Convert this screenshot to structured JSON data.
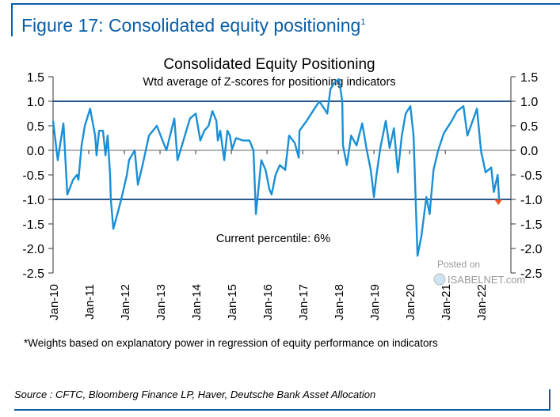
{
  "figure": {
    "title": "Figure 17: Consolidated equity positioning",
    "title_superscript": "1",
    "footnote": "*Weights based on explanatory power in regression of equity performance on indicators",
    "source": "Source : CFTC, Bloomberg Finance LP, Haver, Deutsche Bank Asset Allocation",
    "watermark_top": "Posted on",
    "watermark_bottom": "ISABELNET.com",
    "accent_color": "#0b5ea8"
  },
  "chart_data": {
    "type": "line",
    "title": "Consolidated Equity Positioning",
    "subtitle": "Wtd average of Z-scores for positioning indicators",
    "annotation": "Current percentile: 6%",
    "xlabel": "",
    "ylabel": "",
    "xlim": [
      2010,
      2022.84
    ],
    "ylim": [
      -2.5,
      1.5
    ],
    "y_ticks": [
      "1.5",
      "1.0",
      "0.5",
      "0.0",
      "-0.5",
      "-1.0",
      "-1.5",
      "-2.0",
      "-2.5"
    ],
    "y_tick_values": [
      1.5,
      1.0,
      0.5,
      0.0,
      -0.5,
      -1.0,
      -1.5,
      -2.0,
      -2.5
    ],
    "x_ticks": [
      "Jan-10",
      "Jan-11",
      "Jan-12",
      "Jan-13",
      "Jan-14",
      "Jan-15",
      "Jan-16",
      "Jan-17",
      "Jan-18",
      "Jan-19",
      "Jan-20",
      "Jan-21",
      "Jan-22"
    ],
    "x_tick_values": [
      2010,
      2011,
      2012,
      2013,
      2014,
      2015,
      2016,
      2017,
      2018,
      2019,
      2020,
      2021,
      2022
    ],
    "reference_lines": [
      1.0,
      0.0,
      -1.0
    ],
    "series_color": "#1a8fd6",
    "reference_color": "#0d3f7a",
    "marker_color": "#e8522a",
    "current_point": {
      "x": 2022.49,
      "y": -1.05
    },
    "series": [
      {
        "name": "Consolidated Equity Positioning",
        "x": [
          2010.0,
          2010.13,
          2010.29,
          2010.4,
          2010.56,
          2010.67,
          2010.71,
          2010.8,
          2010.89,
          2011.04,
          2011.18,
          2011.22,
          2011.29,
          2011.4,
          2011.47,
          2011.53,
          2011.6,
          2011.62,
          2011.69,
          2011.84,
          2011.91,
          2012.07,
          2012.13,
          2012.29,
          2012.38,
          2012.51,
          2012.69,
          2012.91,
          2013.18,
          2013.4,
          2013.49,
          2013.84,
          2014.0,
          2014.13,
          2014.24,
          2014.36,
          2014.47,
          2014.58,
          2014.62,
          2014.69,
          2014.8,
          2014.89,
          2014.96,
          2015.02,
          2015.13,
          2015.33,
          2015.51,
          2015.62,
          2015.69,
          2015.84,
          2015.96,
          2016.07,
          2016.13,
          2016.24,
          2016.36,
          2016.51,
          2016.62,
          2016.78,
          2016.89,
          2016.91,
          2017.11,
          2017.33,
          2017.47,
          2017.69,
          2017.78,
          2017.91,
          2018.02,
          2018.11,
          2018.13,
          2018.24,
          2018.36,
          2018.51,
          2018.67,
          2018.8,
          2018.91,
          2019.0,
          2019.07,
          2019.18,
          2019.33,
          2019.44,
          2019.56,
          2019.67,
          2019.78,
          2019.89,
          2020.02,
          2020.11,
          2020.22,
          2020.33,
          2020.47,
          2020.56,
          2020.67,
          2020.8,
          2020.96,
          2021.18,
          2021.33,
          2021.51,
          2021.62,
          2021.89,
          2022.0,
          2022.13,
          2022.29,
          2022.36,
          2022.47,
          2022.51
        ],
        "y": [
          0.6,
          -0.2,
          0.55,
          -0.9,
          -0.6,
          -0.5,
          -0.6,
          0.1,
          0.5,
          0.85,
          0.3,
          -0.1,
          0.4,
          0.4,
          -0.1,
          0.3,
          -0.5,
          -1.0,
          -1.6,
          -1.2,
          -1.0,
          -0.5,
          -0.2,
          0.0,
          -0.7,
          -0.3,
          0.3,
          0.5,
          0.0,
          0.65,
          -0.2,
          0.65,
          0.75,
          0.2,
          0.4,
          0.5,
          0.8,
          0.6,
          0.2,
          0.4,
          -0.2,
          0.4,
          0.3,
          0.02,
          0.25,
          0.2,
          0.2,
          0.0,
          -1.3,
          -0.2,
          -0.4,
          -0.8,
          -0.9,
          -0.5,
          -0.3,
          -0.4,
          0.3,
          0.15,
          -0.15,
          0.4,
          0.6,
          0.85,
          1.0,
          0.75,
          1.25,
          1.4,
          1.45,
          1.0,
          0.1,
          -0.3,
          0.3,
          0.1,
          0.55,
          0.0,
          -0.4,
          -0.95,
          -0.5,
          0.05,
          0.6,
          0.05,
          0.45,
          -0.45,
          0.3,
          0.75,
          0.9,
          0.3,
          -2.15,
          -1.75,
          -0.95,
          -1.3,
          -0.4,
          0.0,
          0.35,
          0.6,
          0.8,
          0.9,
          0.3,
          0.85,
          0.0,
          -0.45,
          -0.35,
          -0.85,
          -0.5,
          -1.0
        ]
      }
    ]
  }
}
